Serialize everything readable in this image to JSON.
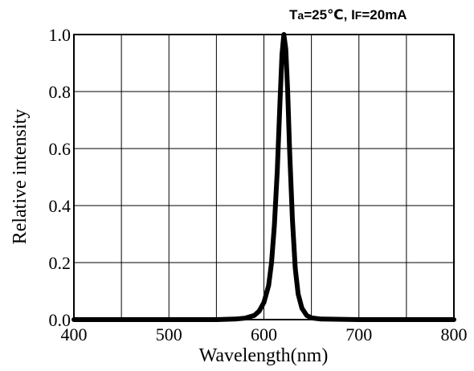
{
  "chart_data": {
    "type": "line",
    "annotation": {
      "t_main": "T",
      "t_sub": "a",
      "t_value": "=25℃, ",
      "i_main": "I",
      "i_sub": "F",
      "i_value": "=20mA"
    },
    "xlabel": "Wavelength(nm)",
    "ylabel": "Relative intensity",
    "xlim": [
      400,
      800
    ],
    "ylim": [
      0.0,
      1.0
    ],
    "x_ticks": [
      "400",
      "500",
      "600",
      "700",
      "800"
    ],
    "y_ticks": [
      "0.0",
      "0.2",
      "0.4",
      "0.6",
      "0.8",
      "1.0"
    ],
    "grid": true,
    "series": [
      {
        "x": [
          400,
          450,
          500,
          550,
          570,
          580,
          590,
          595,
          600,
          605,
          608,
          611,
          614,
          617,
          619,
          621,
          623,
          625,
          627,
          630,
          633,
          636,
          640,
          645,
          650,
          660,
          700,
          750,
          800
        ],
        "y": [
          0.0,
          0.0,
          0.0,
          0.0,
          0.002,
          0.005,
          0.015,
          0.03,
          0.06,
          0.12,
          0.2,
          0.33,
          0.52,
          0.77,
          0.93,
          1.0,
          0.95,
          0.8,
          0.6,
          0.35,
          0.18,
          0.09,
          0.04,
          0.015,
          0.006,
          0.002,
          0.0,
          0.0,
          0.0
        ]
      }
    ]
  }
}
